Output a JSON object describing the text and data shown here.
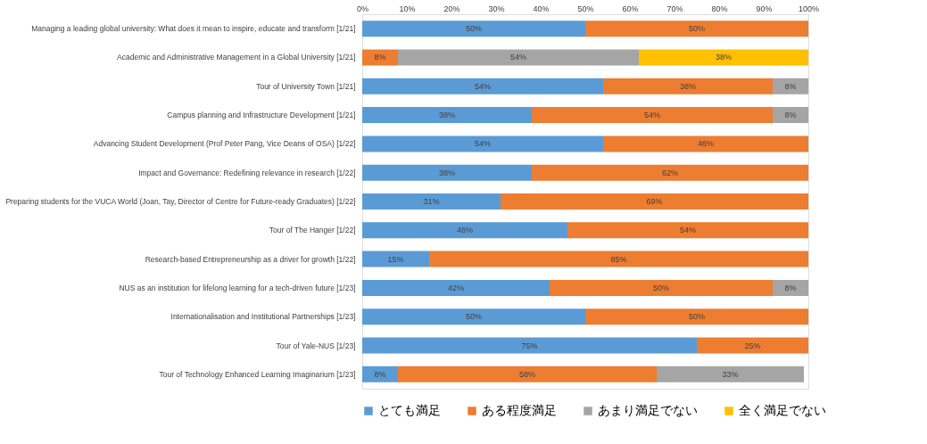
{
  "chart_data": {
    "type": "bar",
    "orientation": "horizontal",
    "stacked": true,
    "legend": "bottom",
    "grid": false,
    "categories": [
      "Managing a leading global university: What does it mean to inspire, educate and transform [1/21]",
      "Academic and Administrative Management in a Global University [1/21]",
      "Tour of University Town [1/21]",
      "Campus planning and Infrastructure Development [1/21]",
      "Advancing Student Development (Prof Peter Pang, Vice Deans of OSA) [1/22]",
      "Impact and Governance: Redefining relevance in research [1/22]",
      "Preparing students for the VUCA World (Joan, Tay, Director of Centre for Future-ready Graduates) [1/22]",
      "Tour of The Hanger [1/22]",
      "Research-based Entrepreneurship as a driver for growth [1/22]",
      "NUS as an institution for lifelong learning for a tech-driven future [1/23]",
      "Internationalisation and Institutional Partnerships [1/23]",
      "Tour of Yale-NUS [1/23]",
      "Tour of Technology Enhanced Learning Imaginarium [1/23]"
    ],
    "series": [
      {
        "name": "とても満足",
        "color": "#5b9bd5",
        "values": [
          50,
          null,
          54,
          38,
          54,
          38,
          31,
          46,
          15,
          42,
          50,
          75,
          8
        ],
        "value_labels": [
          "50%",
          null,
          "54%",
          "38%",
          "54%",
          "38%",
          "31%",
          "46%",
          "15%",
          "42%",
          "50%",
          "75%",
          "8%"
        ]
      },
      {
        "name": "ある程度満足",
        "color": "#ed7d31",
        "values": [
          50,
          8,
          38,
          54,
          46,
          62,
          69,
          54,
          85,
          50,
          50,
          25,
          58
        ],
        "value_labels": [
          "50%",
          "8%",
          "38%",
          "54%",
          "46%",
          "62%",
          "69%",
          "54%",
          "85%",
          "50%",
          "50%",
          "25%",
          "58%"
        ]
      },
      {
        "name": "あまり満足でない",
        "color": "#a5a5a5",
        "values": [
          null,
          54,
          8,
          8,
          null,
          null,
          null,
          null,
          null,
          8,
          null,
          null,
          33
        ],
        "value_labels": [
          null,
          "54%",
          "8%",
          "8%",
          null,
          null,
          null,
          null,
          null,
          "8%",
          null,
          null,
          "33%"
        ]
      },
      {
        "name": "全く満足でない",
        "color": "#ffc000",
        "values": [
          null,
          38,
          null,
          null,
          null,
          null,
          null,
          null,
          null,
          null,
          null,
          null,
          null
        ],
        "value_labels": [
          null,
          "38%",
          null,
          null,
          null,
          null,
          null,
          null,
          null,
          null,
          null,
          null,
          null
        ]
      }
    ],
    "xlim": [
      0,
      100
    ],
    "xticks": [
      {
        "value": 0,
        "label": "0%"
      },
      {
        "value": 10,
        "label": "10%"
      },
      {
        "value": 20,
        "label": "20%"
      },
      {
        "value": 30,
        "label": "30%"
      },
      {
        "value": 40,
        "label": "40%"
      },
      {
        "value": 50,
        "label": "50%"
      },
      {
        "value": 60,
        "label": "60%"
      },
      {
        "value": 70,
        "label": "70%"
      },
      {
        "value": 80,
        "label": "80%"
      },
      {
        "value": 90,
        "label": "90%"
      },
      {
        "value": 100,
        "label": "100%"
      }
    ]
  }
}
